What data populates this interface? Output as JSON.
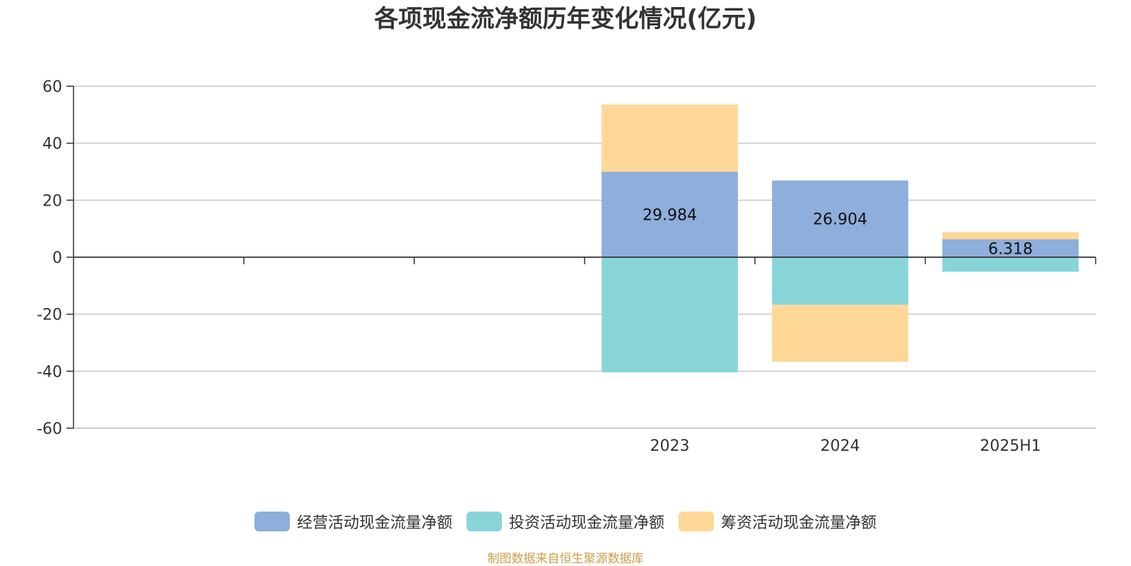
{
  "chart_data": {
    "type": "bar",
    "stacked": true,
    "title": "各项现金流净额历年变化情况(亿元)",
    "categories": [
      "",
      "",
      "",
      "2023",
      "2024",
      "2025H1"
    ],
    "series": [
      {
        "name": "经营活动现金流量净额",
        "color": "#8eaedb",
        "values": [
          null,
          null,
          null,
          29.984,
          26.904,
          6.318
        ],
        "labels": [
          "",
          "",
          "",
          "29.984",
          "26.904",
          "6.318"
        ]
      },
      {
        "name": "投资活动现金流量净额",
        "color": "#88d5d9",
        "values": [
          null,
          null,
          null,
          -40.4,
          -16.7,
          -5.1
        ]
      },
      {
        "name": "筹资活动现金流量净额",
        "color": "#ffd898",
        "values": [
          null,
          null,
          null,
          23.6,
          -20.0,
          2.5
        ]
      }
    ],
    "ylim": [
      -60,
      60
    ],
    "yticks": [
      -60,
      -40,
      -20,
      0,
      20,
      40,
      60
    ],
    "grid": true,
    "legend": "bottom",
    "xlabel": "",
    "ylabel": ""
  },
  "footer": {
    "source": "制图数据来自恒生聚源数据库"
  }
}
